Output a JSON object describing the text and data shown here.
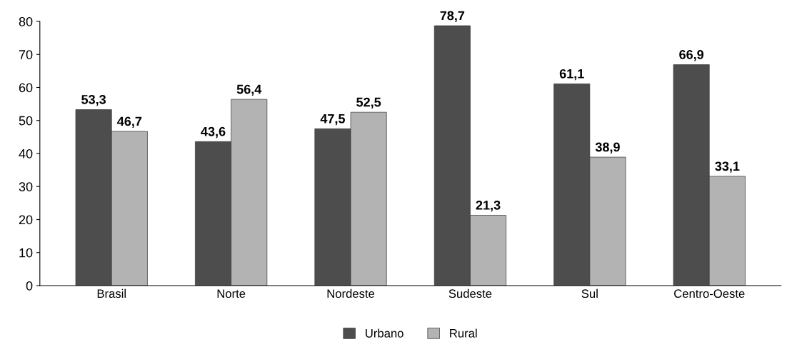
{
  "chart_data": {
    "type": "bar",
    "categories": [
      "Brasil",
      "Norte",
      "Nordeste",
      "Sudeste",
      "Sul",
      "Centro-Oeste"
    ],
    "series": [
      {
        "name": "Urbano",
        "color": "#4d4d4d",
        "values": [
          53.3,
          43.6,
          47.5,
          78.7,
          61.1,
          66.9
        ],
        "value_labels": [
          "53,3",
          "43,6",
          "47,5",
          "78,7",
          "61,1",
          "66,9"
        ]
      },
      {
        "name": "Rural",
        "color": "#b3b3b3",
        "values": [
          46.7,
          56.4,
          52.5,
          21.3,
          38.9,
          33.1
        ],
        "value_labels": [
          "46,7",
          "56,4",
          "52,5",
          "21,3",
          "38,9",
          "33,1"
        ]
      }
    ],
    "ylim": [
      0,
      80
    ],
    "yticks": [
      0,
      10,
      20,
      30,
      40,
      50,
      60,
      70,
      80
    ],
    "grid": false,
    "legend": "bottom"
  }
}
